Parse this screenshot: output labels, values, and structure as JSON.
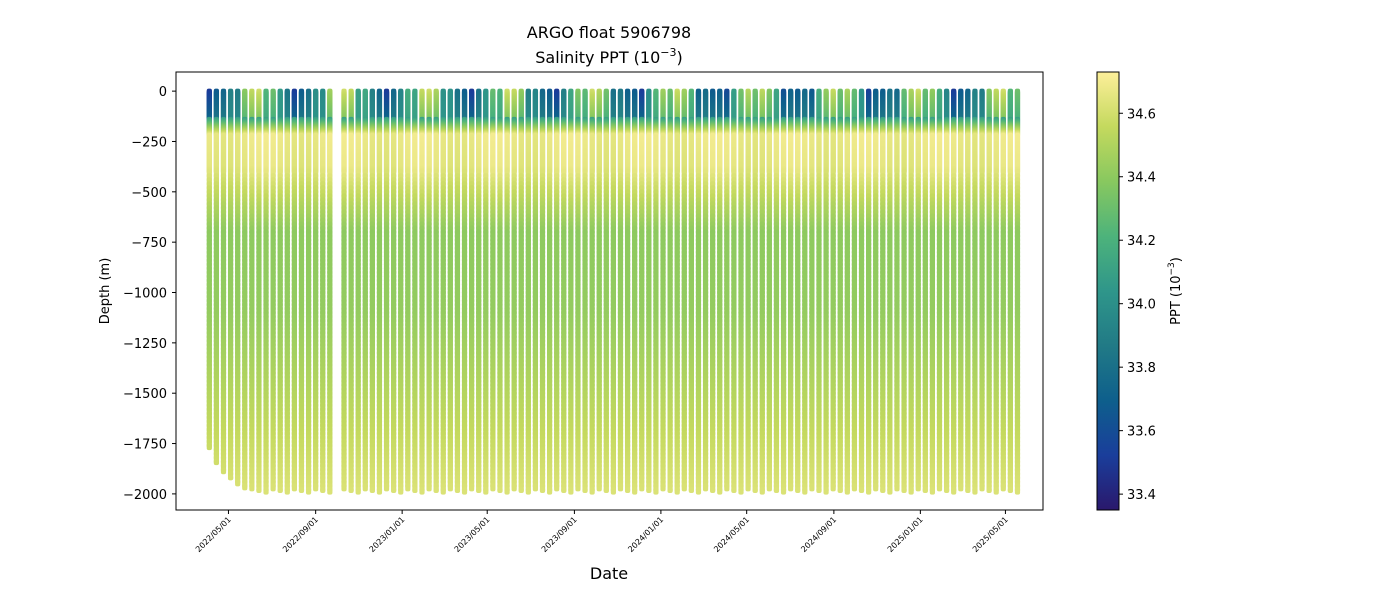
{
  "chart_data": {
    "type": "scatter",
    "title": "ARGO float 5906798",
    "subtitle_prefix": "Salinity PPT (10",
    "subtitle_exponent": "−3",
    "subtitle_suffix": ")",
    "xlabel": "Date",
    "ylabel": "Depth (m)",
    "ylim": [
      -2080,
      95
    ],
    "xlim": [
      "2022-02-16",
      "2025-06-23"
    ],
    "y_ticks": [
      0,
      -250,
      -500,
      -750,
      -1000,
      -1250,
      -1500,
      -1750,
      -2000
    ],
    "y_tick_labels": [
      "0",
      "−250",
      "−500",
      "−750",
      "−1000",
      "−1250",
      "−1500",
      "−1750",
      "−2000"
    ],
    "x_ticks": [
      "2022-05-01",
      "2022-09-01",
      "2023-01-01",
      "2023-05-01",
      "2023-09-01",
      "2024-01-01",
      "2024-05-01",
      "2024-09-01",
      "2025-01-01",
      "2025-05-01"
    ],
    "x_tick_labels": [
      "2022/05/01",
      "2022/09/01",
      "2023/01/01",
      "2023/05/01",
      "2023/09/01",
      "2024/01/01",
      "2024/05/01",
      "2024/09/01",
      "2025/01/01",
      "2025/05/01"
    ],
    "profiles": {
      "start_date": "2022-04-04",
      "end_date": "2025-05-21",
      "interval_days": 10,
      "gap_from": "2022-09-24",
      "gap_to": "2022-10-04",
      "max_depths_first": [
        -1770,
        -1845,
        -1890,
        -1920,
        -1950,
        -1970
      ],
      "max_depth_typical": -1975,
      "surface_salinity_range": [
        33.5,
        34.6
      ],
      "intermediate_max_salinity": 34.7,
      "deep_salinity": 34.48
    },
    "colorbar": {
      "label_prefix": "PPT (10",
      "label_exponent": "−3",
      "label_suffix": ")",
      "min": 33.35,
      "max": 34.73,
      "ticks": [
        33.4,
        33.6,
        33.8,
        34.0,
        34.2,
        34.4,
        34.6
      ],
      "tick_labels": [
        "33.4",
        "33.6",
        "33.8",
        "34.0",
        "34.2",
        "34.4",
        "34.6"
      ],
      "colormap": "haline",
      "colormap_stops": [
        "#2a186c",
        "#1a3e9b",
        "#0e5f8c",
        "#217a86",
        "#2f968a",
        "#4db37b",
        "#88c85f",
        "#c4d95e",
        "#fdef9a"
      ]
    }
  }
}
